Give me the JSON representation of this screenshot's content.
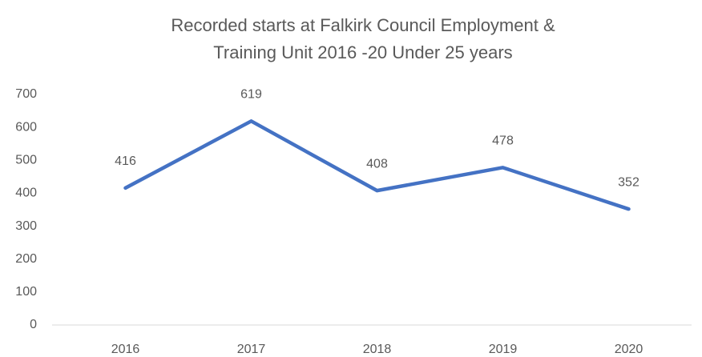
{
  "chart_data": {
    "type": "line",
    "title": [
      "Recorded starts at Falkirk Council Employment &",
      "Training Unit 2016 -20 Under 25 years"
    ],
    "categories": [
      "2016",
      "2017",
      "2018",
      "2019",
      "2020"
    ],
    "series": [
      {
        "color": "#4472c4",
        "values": [
          416,
          619,
          408,
          478,
          352
        ]
      }
    ],
    "ylim": [
      0,
      700
    ],
    "yticks": [
      0,
      100,
      200,
      300,
      400,
      500,
      600,
      700
    ],
    "grid": false,
    "data_labels": true
  }
}
